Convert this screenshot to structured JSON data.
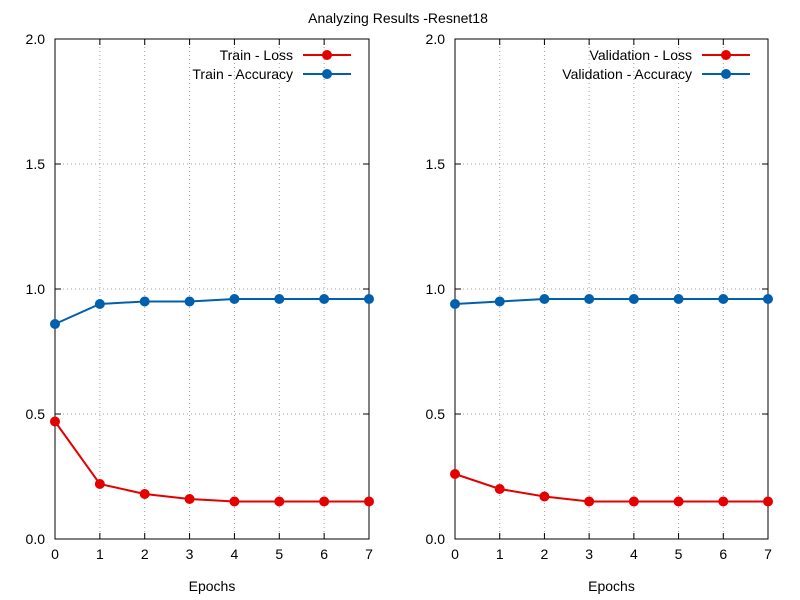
{
  "title": "Analyzing Results -Resnet18",
  "colors": {
    "loss": "#e50000",
    "accuracy": "#0060ad",
    "grid": "#a0a0a0",
    "axis": "#000000"
  },
  "chart_data": [
    {
      "type": "line",
      "xlabel": "Epochs",
      "ylabel": "",
      "xlim": [
        0,
        7
      ],
      "ylim": [
        0,
        2
      ],
      "x_ticks": [
        "0",
        "1",
        "2",
        "3",
        "4",
        "5",
        "6",
        "7"
      ],
      "y_ticks": [
        "0.0",
        "0.5",
        "1.0",
        "1.5",
        "2.0"
      ],
      "grid": true,
      "legend_position": "top-right",
      "x": [
        0,
        1,
        2,
        3,
        4,
        5,
        6,
        7
      ],
      "series": [
        {
          "name": "Train - Loss",
          "color_key": "loss",
          "values": [
            0.47,
            0.22,
            0.18,
            0.16,
            0.15,
            0.15,
            0.15,
            0.15
          ]
        },
        {
          "name": "Train - Accuracy",
          "color_key": "accuracy",
          "values": [
            0.86,
            0.94,
            0.95,
            0.95,
            0.96,
            0.96,
            0.96,
            0.96
          ]
        }
      ]
    },
    {
      "type": "line",
      "xlabel": "Epochs",
      "ylabel": "",
      "xlim": [
        0,
        7
      ],
      "ylim": [
        0,
        2
      ],
      "x_ticks": [
        "0",
        "1",
        "2",
        "3",
        "4",
        "5",
        "6",
        "7"
      ],
      "y_ticks": [
        "0.0",
        "0.5",
        "1.0",
        "1.5",
        "2.0"
      ],
      "grid": true,
      "legend_position": "top-right",
      "x": [
        0,
        1,
        2,
        3,
        4,
        5,
        6,
        7
      ],
      "series": [
        {
          "name": "Validation - Loss",
          "color_key": "loss",
          "values": [
            0.26,
            0.2,
            0.17,
            0.15,
            0.15,
            0.15,
            0.15,
            0.15
          ]
        },
        {
          "name": "Validation - Accuracy",
          "color_key": "accuracy",
          "values": [
            0.94,
            0.95,
            0.96,
            0.96,
            0.96,
            0.96,
            0.96,
            0.96
          ]
        }
      ]
    }
  ]
}
